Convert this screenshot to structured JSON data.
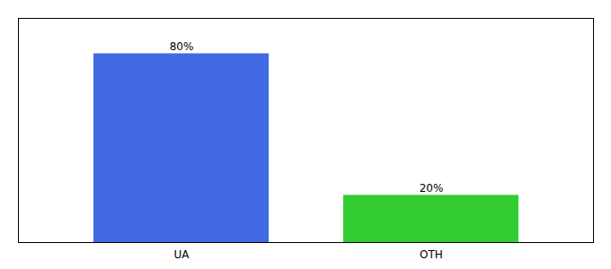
{
  "chart_data": {
    "type": "bar",
    "categories": [
      "UA",
      "OTH"
    ],
    "values": [
      80,
      20
    ],
    "colors": [
      "#4169e1",
      "#33cc33"
    ],
    "value_labels": [
      "80%",
      "20%"
    ],
    "data_labels": true,
    "ylim": [
      0,
      95
    ],
    "tick_labels": "x"
  }
}
